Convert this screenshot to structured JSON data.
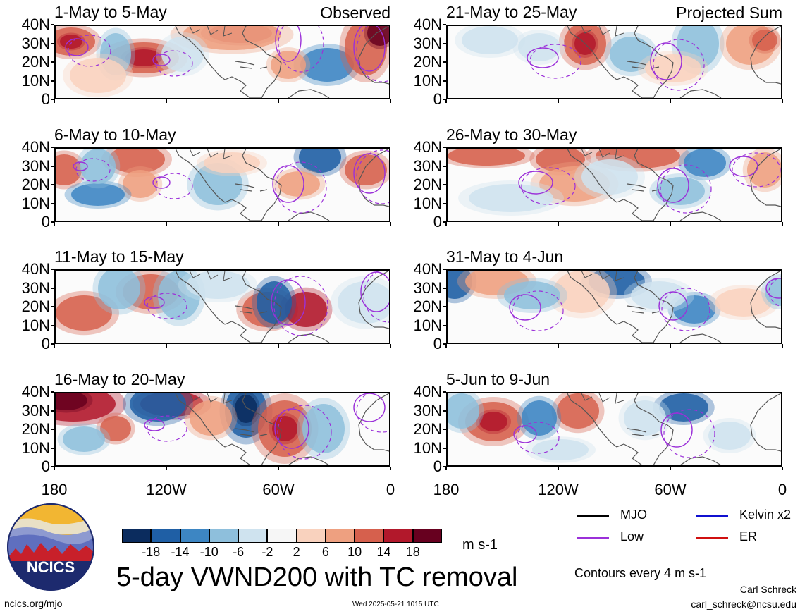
{
  "panels": [
    {
      "title": "1-May to 5-May",
      "tag": "Observed",
      "col": 0,
      "row": 0
    },
    {
      "title": "6-May to 10-May",
      "tag": "",
      "col": 0,
      "row": 1
    },
    {
      "title": "11-May to 15-May",
      "tag": "",
      "col": 0,
      "row": 2
    },
    {
      "title": "16-May to 20-May",
      "tag": "",
      "col": 0,
      "row": 3
    },
    {
      "title": "21-May to 25-May",
      "tag": "Projected Sum",
      "col": 1,
      "row": 0
    },
    {
      "title": "26-May to 30-May",
      "tag": "",
      "col": 1,
      "row": 1
    },
    {
      "title": "31-May to 4-Jun",
      "tag": "",
      "col": 1,
      "row": 2
    },
    {
      "title": "5-Jun to 9-Jun",
      "tag": "",
      "col": 1,
      "row": 3
    }
  ],
  "y_ticks": [
    "40N",
    "30N",
    "20N",
    "10N",
    "0"
  ],
  "x_ticks": [
    "180",
    "120W",
    "60W",
    "0"
  ],
  "colorbar": {
    "labels": [
      "-18",
      "-14",
      "-10",
      "-6",
      "-2",
      "2",
      "6",
      "10",
      "14",
      "18"
    ],
    "colors": [
      "#0b2c5e",
      "#1f5fa5",
      "#3d86c3",
      "#8ebfdc",
      "#cfe3ef",
      "#f6f6f6",
      "#f9d2be",
      "#eea080",
      "#d6604d",
      "#b2182b",
      "#67001f"
    ],
    "unit": "m s-1"
  },
  "legend": {
    "items": [
      {
        "label": "MJO",
        "color": "#000000"
      },
      {
        "label": "Kelvin x2",
        "color": "#1010d0"
      },
      {
        "label": "Low",
        "color": "#9b30d9"
      },
      {
        "label": "ER",
        "color": "#d01010"
      }
    ],
    "contours_note": "Contours every 4 m s-1"
  },
  "main_title": "5-day VWND200 with TC removal",
  "logo_text": "NCICS",
  "footer": {
    "url": "ncics.org/mjo",
    "timestamp": "Wed 2025-05-21 1015 UTC",
    "author": "Carl Schreck",
    "email": "carl_schreck@ncsu.edu"
  }
}
